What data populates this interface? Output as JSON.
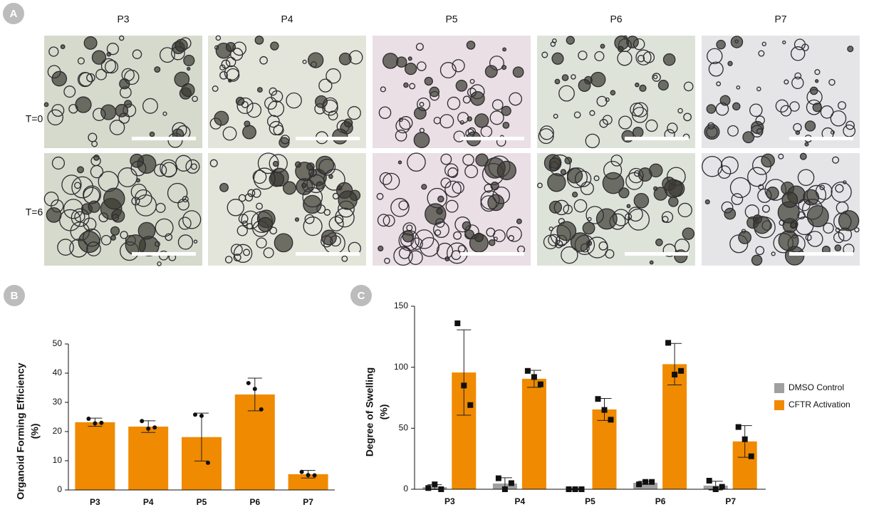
{
  "images": {
    "panel_label": "A",
    "columns": [
      "P3",
      "P4",
      "P5",
      "P6",
      "P7"
    ],
    "rows": [
      "T=0",
      "T=6"
    ]
  },
  "chart_data": [
    {
      "panel_label": "B",
      "type": "bar",
      "y_label": [
        "Organoid Forming Efficiency",
        "(%)"
      ],
      "categories": [
        "P3",
        "P4",
        "P5",
        "P6",
        "P7"
      ],
      "values": [
        23.2,
        21.7,
        18.1,
        32.7,
        5.4
      ],
      "errors": [
        1.4,
        2.0,
        8.2,
        5.6,
        1.3
      ],
      "points": [
        [
          24.4,
          22.8,
          23.0
        ],
        [
          23.6,
          21.0,
          21.4
        ],
        [
          25.8,
          25.4,
          9.3
        ],
        [
          36.6,
          34.6,
          27.6
        ],
        [
          6.2,
          5.1,
          5.0
        ]
      ],
      "color": "#f08a00",
      "point_color": "#111111",
      "point_marker": "circle",
      "ylim": [
        0,
        50
      ],
      "yticks": [
        0,
        10,
        20,
        30,
        40,
        50
      ]
    },
    {
      "panel_label": "C",
      "type": "grouped_bar",
      "y_label": [
        "Degree of Swelling",
        "(%)"
      ],
      "categories": [
        "P3",
        "P4",
        "P5",
        "P6",
        "P7"
      ],
      "series": [
        {
          "name": "DMSO Control",
          "color": "#a0a0a0",
          "values": [
            1.7,
            4.7,
            0,
            5.3,
            3.0
          ],
          "errors": [
            2.0,
            4.7,
            0.5,
            1.2,
            3.6
          ],
          "points": [
            [
              1,
              4,
              0
            ],
            [
              9,
              0,
              5
            ],
            [
              0,
              0,
              0
            ],
            [
              4,
              6,
              6
            ],
            [
              7,
              0,
              2
            ]
          ]
        },
        {
          "name": "CFTR Activation",
          "color": "#f08a00",
          "values": [
            95.7,
            90.5,
            65.4,
            102.5,
            39.2
          ],
          "errors": [
            35,
            7,
            9,
            17,
            13
          ],
          "points": [
            [
              136,
              85,
              69
            ],
            [
              97,
              92,
              86
            ],
            [
              74,
              65,
              57
            ],
            [
              120,
              94,
              97
            ],
            [
              51,
              41,
              27
            ]
          ]
        }
      ],
      "point_color": "#111111",
      "point_marker": "square",
      "legend": "right",
      "ylim": [
        0,
        150
      ],
      "yticks": [
        0,
        50,
        100,
        150
      ]
    }
  ]
}
